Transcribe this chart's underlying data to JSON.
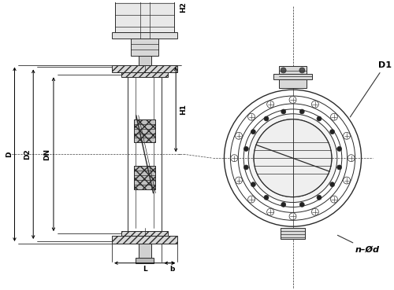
{
  "bg_color": "#ffffff",
  "line_color": "#2a2a2a",
  "dim_color": "#000000",
  "fig_width": 5.0,
  "fig_height": 3.69,
  "dpi": 100,
  "labels": {
    "D": "D",
    "D2": "D2",
    "DN": "DN",
    "H1": "H1",
    "H2": "H2",
    "b": "b",
    "L": "L",
    "D1": "D1",
    "n_Od": "n–Ød"
  }
}
